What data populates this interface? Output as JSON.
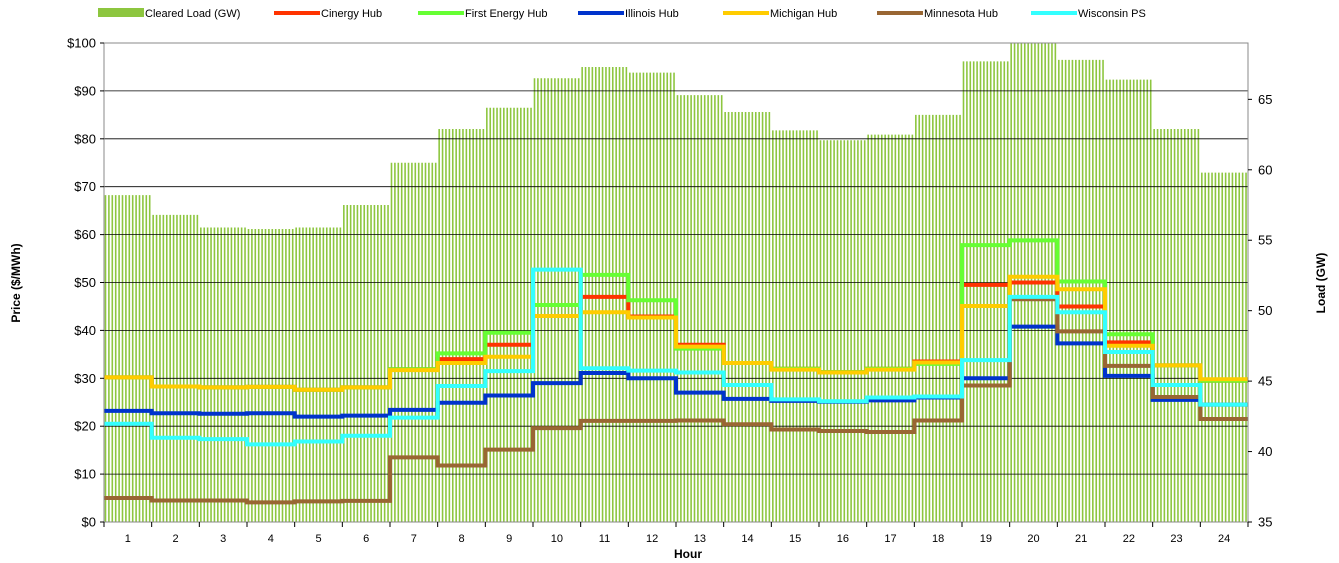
{
  "chart_data": {
    "type": "line",
    "xlabel": "Hour",
    "ylabel": "Price ($/MWh)",
    "y2label": "Load (GW)",
    "x": [
      "1",
      "2",
      "3",
      "4",
      "5",
      "6",
      "7",
      "8",
      "9",
      "10",
      "11",
      "12",
      "13",
      "14",
      "15",
      "16",
      "17",
      "18",
      "19",
      "20",
      "21",
      "22",
      "23",
      "24"
    ],
    "ylim": [
      0,
      100
    ],
    "y_ticks": [
      "$0",
      "$10",
      "$20",
      "$30",
      "$40",
      "$50",
      "$60",
      "$70",
      "$80",
      "$90",
      "$100"
    ],
    "y2lim": [
      35,
      69
    ],
    "y2_ticks": [
      "35",
      "40",
      "45",
      "50",
      "55",
      "60",
      "65"
    ],
    "grid": "horizontal",
    "legend": "top",
    "load": {
      "name": "Cleared Load (GW)",
      "color": "#8dc63f",
      "values": [
        58.2,
        56.8,
        55.9,
        55.8,
        55.9,
        57.5,
        60.5,
        62.9,
        64.4,
        66.5,
        67.3,
        66.9,
        65.3,
        64.1,
        62.8,
        62.1,
        62.5,
        63.9,
        67.7,
        69.0,
        67.8,
        66.4,
        62.9,
        59.8
      ]
    },
    "series": [
      {
        "name": "Cinergy Hub",
        "color": "#ff3300",
        "values": [
          30.2,
          28.3,
          28.1,
          28.2,
          27.6,
          28.1,
          31.9,
          34.0,
          37.0,
          43.0,
          47.0,
          42.9,
          37.0,
          33.2,
          32.0,
          31.3,
          32.0,
          33.5,
          49.5,
          50.0,
          45.0,
          37.5,
          32.7,
          29.5
        ]
      },
      {
        "name": "First Energy Hub",
        "color": "#66ff33",
        "values": [
          30.2,
          28.3,
          28.1,
          28.2,
          27.6,
          28.1,
          31.9,
          35.2,
          39.5,
          45.3,
          51.6,
          46.3,
          36.2,
          33.2,
          32.0,
          31.3,
          32.0,
          33.0,
          57.8,
          58.8,
          50.2,
          39.2,
          32.7,
          29.5
        ]
      },
      {
        "name": "Illinois Hub",
        "color": "#0033cc",
        "values": [
          23.2,
          22.7,
          22.6,
          22.7,
          22.0,
          22.2,
          23.4,
          24.9,
          26.4,
          29.0,
          31.1,
          30.0,
          27.0,
          25.7,
          25.3,
          25.1,
          25.4,
          26.0,
          30.0,
          40.8,
          37.3,
          30.5,
          25.5,
          24.5
        ]
      },
      {
        "name": "Michigan Hub",
        "color": "#ffcc00",
        "values": [
          30.2,
          28.3,
          28.1,
          28.2,
          27.6,
          28.1,
          31.7,
          33.2,
          34.5,
          43.0,
          43.8,
          42.7,
          36.6,
          33.2,
          31.8,
          31.2,
          31.8,
          33.3,
          45.1,
          51.2,
          48.6,
          36.8,
          32.7,
          29.8
        ]
      },
      {
        "name": "Minnesota Hub",
        "color": "#996633",
        "values": [
          5.0,
          4.5,
          4.5,
          4.1,
          4.3,
          4.4,
          13.5,
          11.8,
          15.1,
          19.6,
          21.1,
          21.1,
          21.2,
          20.4,
          19.3,
          19.0,
          18.8,
          21.2,
          28.5,
          46.5,
          39.8,
          32.6,
          26.1,
          21.5
        ]
      },
      {
        "name": "Wisconsin PS",
        "color": "#33ffff",
        "values": [
          20.5,
          17.6,
          17.3,
          16.2,
          16.8,
          18.0,
          21.8,
          28.4,
          31.5,
          52.7,
          32.1,
          31.6,
          31.2,
          28.6,
          25.6,
          25.2,
          26.0,
          26.2,
          33.8,
          47.0,
          43.8,
          35.5,
          28.6,
          24.5
        ]
      }
    ]
  }
}
